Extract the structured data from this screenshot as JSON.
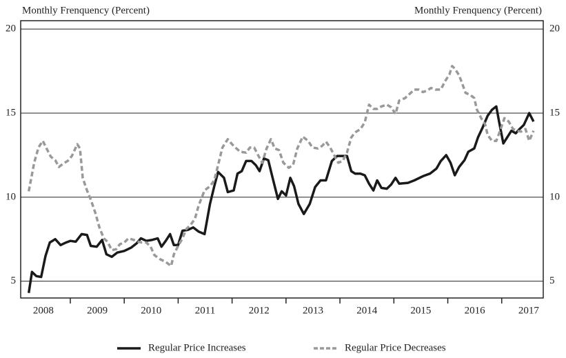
{
  "chart_data": {
    "type": "line",
    "y_label": "Monthly Frenquency (Percent)",
    "y2_label": "Monthly Frenquency (Percent)",
    "xlim": [
      2008.08,
      2017.77
    ],
    "xticks": [
      {
        "value": 2008.5,
        "label": "2008"
      },
      {
        "value": 2009.5,
        "label": "2009"
      },
      {
        "value": 2010.5,
        "label": "2010"
      },
      {
        "value": 2011.5,
        "label": "2011"
      },
      {
        "value": 2012.5,
        "label": "2012"
      },
      {
        "value": 2013.5,
        "label": "2013"
      },
      {
        "value": 2014.5,
        "label": "2014"
      },
      {
        "value": 2015.5,
        "label": "2015"
      },
      {
        "value": 2016.5,
        "label": "2016"
      },
      {
        "value": 2017.5,
        "label": "2017"
      }
    ],
    "year_boundaries": [
      2009,
      2010,
      2011,
      2012,
      2013,
      2014,
      2015,
      2016,
      2017
    ],
    "ylim": [
      4,
      20.5
    ],
    "yticks": [
      5,
      10,
      15,
      20
    ],
    "y2lim": [
      4,
      20.5
    ],
    "y2ticks": [
      5,
      10,
      15,
      20
    ],
    "grid": true,
    "legend": "bottom",
    "series": [
      {
        "name": "Regular Price Increases",
        "color": "#1a1a1a",
        "dash": "solid",
        "x": [
          2008.23,
          2008.29,
          2008.37,
          2008.46,
          2008.54,
          2008.62,
          2008.72,
          2008.82,
          2008.92,
          2009.0,
          2009.1,
          2009.21,
          2009.31,
          2009.38,
          2009.49,
          2009.59,
          2009.67,
          2009.77,
          2009.87,
          2010.0,
          2010.13,
          2010.23,
          2010.31,
          2010.41,
          2010.51,
          2010.62,
          2010.69,
          2010.77,
          2010.85,
          2010.92,
          2011.0,
          2011.08,
          2011.18,
          2011.28,
          2011.38,
          2011.49,
          2011.59,
          2011.67,
          2011.74,
          2011.85,
          2011.92,
          2012.03,
          2012.1,
          2012.18,
          2012.26,
          2012.36,
          2012.44,
          2012.51,
          2012.59,
          2012.67,
          2012.74,
          2012.85,
          2012.92,
          2013.0,
          2013.08,
          2013.15,
          2013.23,
          2013.33,
          2013.44,
          2013.54,
          2013.64,
          2013.74,
          2013.85,
          2013.95,
          2014.05,
          2014.13,
          2014.21,
          2014.28,
          2014.38,
          2014.46,
          2014.54,
          2014.62,
          2014.69,
          2014.77,
          2014.87,
          2014.95,
          2015.03,
          2015.1,
          2015.26,
          2015.38,
          2015.54,
          2015.67,
          2015.79,
          2015.87,
          2015.97,
          2016.05,
          2016.13,
          2016.21,
          2016.31,
          2016.38,
          2016.49,
          2016.56,
          2016.64,
          2016.74,
          2016.82,
          2016.9,
          2016.95,
          2017.03,
          2017.1,
          2017.18,
          2017.26,
          2017.33,
          2017.41,
          2017.51,
          2017.59
        ],
        "values": [
          4.3,
          5.55,
          5.3,
          5.25,
          6.5,
          7.3,
          7.5,
          7.15,
          7.3,
          7.4,
          7.35,
          7.8,
          7.75,
          7.1,
          7.05,
          7.45,
          6.6,
          6.45,
          6.7,
          6.8,
          7.0,
          7.25,
          7.55,
          7.4,
          7.45,
          7.55,
          7.05,
          7.4,
          7.8,
          7.15,
          7.15,
          8.0,
          8.05,
          8.2,
          7.95,
          7.8,
          9.6,
          10.65,
          11.5,
          11.15,
          10.3,
          10.4,
          11.4,
          11.55,
          12.15,
          12.15,
          11.9,
          11.55,
          12.3,
          12.2,
          11.3,
          9.9,
          10.35,
          10.1,
          11.15,
          10.65,
          9.6,
          9.0,
          9.6,
          10.6,
          11.0,
          11.0,
          12.15,
          12.45,
          12.45,
          12.45,
          11.55,
          11.4,
          11.4,
          11.3,
          10.8,
          10.4,
          11.0,
          10.55,
          10.5,
          10.75,
          11.15,
          10.8,
          10.85,
          11.0,
          11.25,
          11.4,
          11.7,
          12.15,
          12.5,
          12.05,
          11.3,
          11.8,
          12.2,
          12.7,
          12.9,
          13.55,
          14.1,
          14.85,
          15.2,
          15.4,
          14.5,
          13.2,
          13.55,
          13.95,
          13.8,
          14.05,
          14.3,
          15.0,
          14.5
        ]
      },
      {
        "name": "Regular Price Decreases",
        "color": "#999999",
        "dash": "dashed",
        "x": [
          2008.23,
          2008.33,
          2008.41,
          2008.49,
          2008.56,
          2008.64,
          2008.72,
          2008.79,
          2008.87,
          2008.95,
          2009.03,
          2009.13,
          2009.18,
          2009.23,
          2009.31,
          2009.38,
          2009.46,
          2009.54,
          2009.62,
          2009.69,
          2009.77,
          2009.85,
          2009.92,
          2010.0,
          2010.08,
          2010.18,
          2010.26,
          2010.33,
          2010.41,
          2010.49,
          2010.56,
          2010.67,
          2010.77,
          2010.87,
          2010.92,
          2011.0,
          2011.08,
          2011.15,
          2011.23,
          2011.31,
          2011.38,
          2011.49,
          2011.59,
          2011.67,
          2011.74,
          2011.82,
          2011.92,
          2012.0,
          2012.08,
          2012.15,
          2012.26,
          2012.33,
          2012.41,
          2012.49,
          2012.56,
          2012.64,
          2012.72,
          2012.79,
          2012.87,
          2012.95,
          2013.05,
          2013.13,
          2013.21,
          2013.31,
          2013.41,
          2013.49,
          2013.59,
          2013.67,
          2013.74,
          2013.82,
          2013.9,
          2013.97,
          2014.05,
          2014.13,
          2014.21,
          2014.28,
          2014.38,
          2014.46,
          2014.54,
          2014.62,
          2014.69,
          2014.77,
          2014.87,
          2014.95,
          2015.03,
          2015.1,
          2015.21,
          2015.31,
          2015.38,
          2015.46,
          2015.54,
          2015.62,
          2015.69,
          2015.77,
          2015.87,
          2015.95,
          2016.03,
          2016.08,
          2016.13,
          2016.21,
          2016.28,
          2016.33,
          2016.41,
          2016.49,
          2016.54,
          2016.62,
          2016.69,
          2016.74,
          2016.82,
          2016.9,
          2016.97,
          2017.05,
          2017.13,
          2017.21,
          2017.28,
          2017.36,
          2017.44,
          2017.51,
          2017.59
        ],
        "values": [
          10.35,
          12.05,
          12.95,
          13.35,
          12.9,
          12.4,
          12.2,
          11.8,
          12.0,
          12.15,
          12.45,
          13.15,
          12.9,
          11.15,
          10.4,
          9.85,
          9.1,
          8.2,
          7.55,
          7.35,
          6.85,
          6.9,
          7.2,
          7.3,
          7.55,
          7.45,
          7.35,
          7.3,
          7.3,
          7.05,
          6.55,
          6.3,
          6.15,
          5.9,
          6.6,
          7.1,
          7.55,
          8.1,
          8.35,
          8.7,
          9.5,
          10.4,
          10.65,
          11.0,
          11.9,
          12.95,
          13.45,
          13.15,
          12.9,
          12.7,
          12.65,
          12.95,
          12.95,
          12.45,
          12.05,
          12.9,
          13.45,
          12.9,
          12.8,
          12.05,
          11.75,
          11.9,
          12.9,
          13.6,
          13.35,
          12.95,
          12.9,
          13.05,
          13.3,
          12.95,
          12.45,
          12.05,
          12.15,
          12.65,
          13.55,
          13.85,
          14.05,
          14.45,
          15.5,
          15.25,
          15.25,
          15.4,
          15.5,
          15.35,
          14.95,
          15.75,
          15.9,
          16.2,
          16.4,
          16.4,
          16.25,
          16.35,
          16.5,
          16.4,
          16.4,
          16.9,
          17.3,
          17.8,
          17.65,
          17.25,
          16.65,
          16.2,
          16.1,
          15.9,
          15.2,
          14.7,
          14.35,
          13.7,
          13.35,
          13.35,
          13.95,
          14.7,
          14.5,
          14.05,
          13.95,
          13.9,
          14.05,
          13.35,
          13.95
        ]
      }
    ]
  }
}
